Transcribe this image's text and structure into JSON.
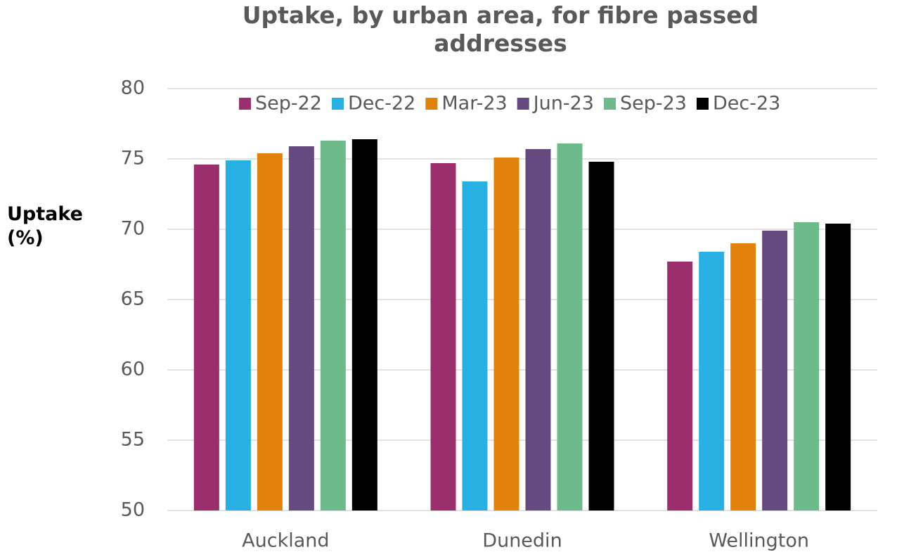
{
  "chart_data": {
    "type": "bar",
    "title": "Uptake, by urban area, for fibre passed addresses",
    "y_label": "Uptake (%)",
    "categories": [
      "Auckland",
      "Dunedin",
      "Wellington"
    ],
    "series": [
      {
        "name": "Sep-22",
        "color": "#9b2f6e",
        "values": [
          74.6,
          74.7,
          67.7
        ]
      },
      {
        "name": "Dec-22",
        "color": "#29b0e3",
        "values": [
          74.9,
          73.4,
          68.4
        ]
      },
      {
        "name": "Mar-23",
        "color": "#e0820c",
        "values": [
          75.4,
          75.1,
          69.0
        ]
      },
      {
        "name": "Jun-23",
        "color": "#654a80",
        "values": [
          75.9,
          75.7,
          69.9
        ]
      },
      {
        "name": "Sep-23",
        "color": "#6dbb8b",
        "values": [
          76.3,
          76.1,
          70.5
        ]
      },
      {
        "name": "Dec-23",
        "color": "#000000",
        "values": [
          76.4,
          74.8,
          70.4
        ]
      }
    ],
    "ylim": [
      50,
      80
    ],
    "yticks": [
      50,
      55,
      60,
      65,
      70,
      75,
      80
    ],
    "grid": true,
    "legend": "top"
  }
}
